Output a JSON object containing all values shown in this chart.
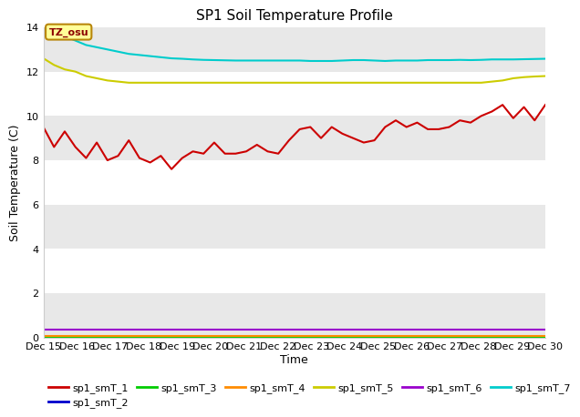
{
  "title": "SP1 Soil Temperature Profile",
  "xlabel": "Time",
  "ylabel": "Soil Temperature (C)",
  "ylim": [
    0,
    14
  ],
  "yticks": [
    0,
    2,
    4,
    6,
    8,
    10,
    12,
    14
  ],
  "annotation_text": "TZ_osu",
  "annotation_color": "#8B0000",
  "annotation_bg": "#FFFF99",
  "annotation_border": "#B8860B",
  "plot_bg_color": "#FFFFFF",
  "stripe_color": "#E8E8E8",
  "series": {
    "sp1_smT_1": {
      "color": "#CC0000",
      "linewidth": 1.5,
      "values": [
        9.5,
        8.6,
        9.3,
        8.6,
        8.1,
        8.8,
        8.0,
        8.2,
        8.9,
        8.1,
        7.9,
        8.2,
        7.6,
        8.1,
        8.4,
        8.3,
        8.8,
        8.3,
        8.3,
        8.4,
        8.7,
        8.4,
        8.3,
        8.9,
        9.4,
        9.5,
        9.0,
        9.5,
        9.2,
        9.0,
        8.8,
        8.9,
        9.5,
        9.8,
        9.5,
        9.7,
        9.4,
        9.4,
        9.5,
        9.8,
        9.7,
        10.0,
        10.2,
        10.5,
        9.9,
        10.4,
        9.8,
        10.5
      ]
    },
    "sp1_smT_2": {
      "color": "#0000CC",
      "linewidth": 1.5,
      "values": [
        0.05,
        0.05,
        0.05,
        0.05,
        0.05,
        0.05,
        0.05,
        0.05,
        0.05,
        0.05,
        0.05,
        0.05,
        0.05,
        0.05,
        0.05,
        0.05,
        0.05,
        0.05,
        0.05,
        0.05,
        0.05,
        0.05,
        0.05,
        0.05,
        0.05,
        0.05,
        0.05,
        0.05,
        0.05,
        0.05,
        0.05,
        0.05,
        0.05,
        0.05,
        0.05,
        0.05,
        0.05,
        0.05,
        0.05,
        0.05,
        0.05,
        0.05,
        0.05,
        0.05,
        0.05,
        0.05,
        0.05,
        0.05
      ]
    },
    "sp1_smT_3": {
      "color": "#00CC00",
      "linewidth": 1.5,
      "values": [
        0.02,
        0.02,
        0.02,
        0.02,
        0.02,
        0.02,
        0.02,
        0.02,
        0.02,
        0.02,
        0.02,
        0.02,
        0.02,
        0.02,
        0.02,
        0.02,
        0.02,
        0.02,
        0.02,
        0.02,
        0.02,
        0.02,
        0.02,
        0.02,
        0.02,
        0.02,
        0.02,
        0.02,
        0.02,
        0.02,
        0.02,
        0.02,
        0.02,
        0.02,
        0.02,
        0.02,
        0.02,
        0.02,
        0.02,
        0.02,
        0.02,
        0.02,
        0.02,
        0.02,
        0.02,
        0.02,
        0.02,
        0.02
      ]
    },
    "sp1_smT_4": {
      "color": "#FF8C00",
      "linewidth": 1.5,
      "values": [
        0.08,
        0.08,
        0.08,
        0.08,
        0.08,
        0.08,
        0.08,
        0.08,
        0.08,
        0.08,
        0.08,
        0.08,
        0.08,
        0.08,
        0.08,
        0.08,
        0.08,
        0.08,
        0.08,
        0.08,
        0.08,
        0.08,
        0.08,
        0.08,
        0.08,
        0.08,
        0.08,
        0.08,
        0.08,
        0.08,
        0.08,
        0.08,
        0.08,
        0.08,
        0.08,
        0.08,
        0.08,
        0.08,
        0.08,
        0.08,
        0.08,
        0.08,
        0.08,
        0.08,
        0.08,
        0.08,
        0.08,
        0.08
      ]
    },
    "sp1_smT_5": {
      "color": "#CCCC00",
      "linewidth": 1.5,
      "values": [
        12.6,
        12.3,
        12.1,
        12.0,
        11.8,
        11.7,
        11.6,
        11.55,
        11.5,
        11.5,
        11.5,
        11.5,
        11.5,
        11.5,
        11.5,
        11.5,
        11.5,
        11.5,
        11.5,
        11.5,
        11.5,
        11.5,
        11.5,
        11.5,
        11.5,
        11.5,
        11.5,
        11.5,
        11.5,
        11.5,
        11.5,
        11.5,
        11.5,
        11.5,
        11.5,
        11.5,
        11.5,
        11.5,
        11.5,
        11.5,
        11.5,
        11.5,
        11.55,
        11.6,
        11.7,
        11.75,
        11.78,
        11.8
      ]
    },
    "sp1_smT_6": {
      "color": "#9900CC",
      "linewidth": 1.5,
      "values": [
        0.35,
        0.35,
        0.35,
        0.35,
        0.35,
        0.35,
        0.35,
        0.35,
        0.35,
        0.35,
        0.35,
        0.35,
        0.35,
        0.35,
        0.35,
        0.35,
        0.35,
        0.35,
        0.35,
        0.35,
        0.35,
        0.35,
        0.35,
        0.35,
        0.35,
        0.35,
        0.35,
        0.35,
        0.35,
        0.35,
        0.35,
        0.35,
        0.35,
        0.35,
        0.35,
        0.35,
        0.35,
        0.35,
        0.35,
        0.35,
        0.35,
        0.35,
        0.35,
        0.35,
        0.35,
        0.35,
        0.35,
        0.35
      ]
    },
    "sp1_smT_7": {
      "color": "#00CCCC",
      "linewidth": 1.5,
      "values": [
        13.95,
        13.8,
        13.6,
        13.4,
        13.2,
        13.1,
        13.0,
        12.9,
        12.8,
        12.75,
        12.7,
        12.65,
        12.6,
        12.58,
        12.55,
        12.53,
        12.52,
        12.51,
        12.5,
        12.5,
        12.5,
        12.5,
        12.5,
        12.5,
        12.5,
        12.48,
        12.48,
        12.48,
        12.5,
        12.52,
        12.52,
        12.5,
        12.48,
        12.5,
        12.5,
        12.5,
        12.52,
        12.52,
        12.52,
        12.53,
        12.52,
        12.53,
        12.55,
        12.55,
        12.55,
        12.56,
        12.57,
        12.58
      ]
    }
  },
  "x_labels": [
    "Dec 15",
    "Dec 16",
    "Dec 17",
    "Dec 18",
    "Dec 19",
    "Dec 20",
    "Dec 21",
    "Dec 22",
    "Dec 23",
    "Dec 24",
    "Dec 25",
    "Dec 26",
    "Dec 27",
    "Dec 28",
    "Dec 29",
    "Dec 30"
  ],
  "legend_order": [
    "sp1_smT_1",
    "sp1_smT_2",
    "sp1_smT_3",
    "sp1_smT_4",
    "sp1_smT_5",
    "sp1_smT_6",
    "sp1_smT_7"
  ]
}
